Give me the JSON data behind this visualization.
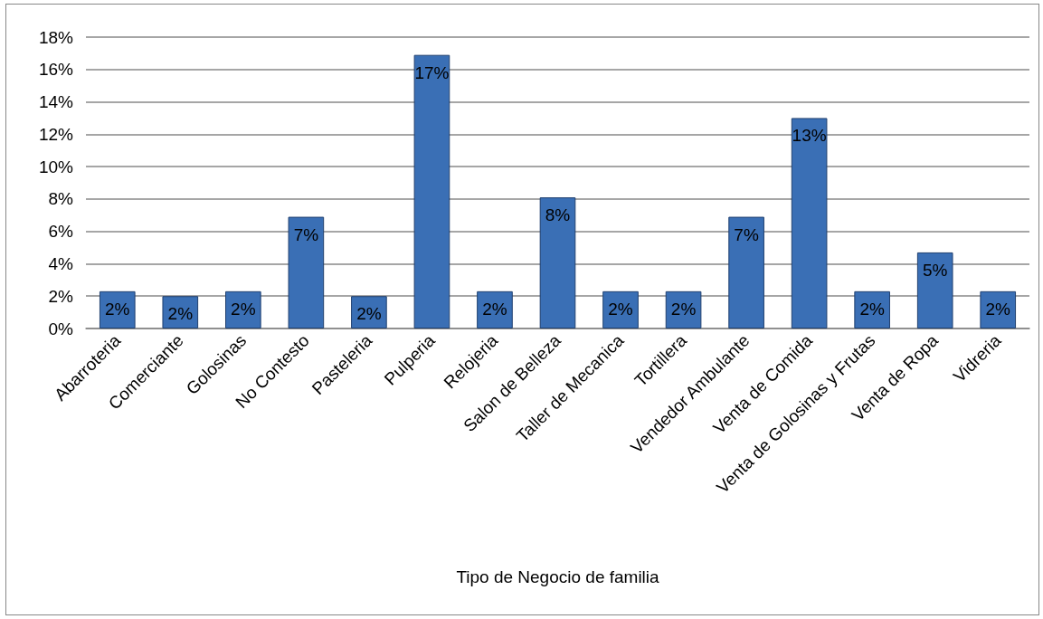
{
  "chart_data": {
    "type": "bar",
    "xlabel": "Tipo de Negocio de familia",
    "categories": [
      "Abarroteria",
      "Comerciante",
      "Golosinas",
      "No Contesto",
      "Pasteleria",
      "Pulperia",
      "Relojeria",
      "Salon de Belleza",
      "Taller de Mecanica",
      "Tortillera",
      "Vendedor Ambulante",
      "Venta de Comida",
      "Venta de Golosinas y Frutas",
      "Venta de Ropa",
      "Vidreria"
    ],
    "values": [
      2.3,
      2.0,
      2.3,
      6.9,
      2.0,
      16.9,
      2.3,
      8.1,
      2.3,
      2.3,
      6.9,
      13.0,
      2.3,
      4.7,
      2.3
    ],
    "value_labels": [
      "2%",
      "2%",
      "2%",
      "7%",
      "2%",
      "17%",
      "2%",
      "8%",
      "2%",
      "2%",
      "7%",
      "13%",
      "2%",
      "5%",
      "2%"
    ],
    "color": "#3a6fb5",
    "ylim": [
      0,
      18
    ],
    "yticks": [
      {
        "value": 0,
        "label": "0%"
      },
      {
        "value": 2,
        "label": "2%"
      },
      {
        "value": 4,
        "label": "4%"
      },
      {
        "value": 6,
        "label": "6%"
      },
      {
        "value": 8,
        "label": "8%"
      },
      {
        "value": 10,
        "label": "10%"
      },
      {
        "value": 12,
        "label": "12%"
      },
      {
        "value": 14,
        "label": "14%"
      },
      {
        "value": 16,
        "label": "16%"
      },
      {
        "value": 18,
        "label": "18%"
      }
    ],
    "grid": "y"
  }
}
